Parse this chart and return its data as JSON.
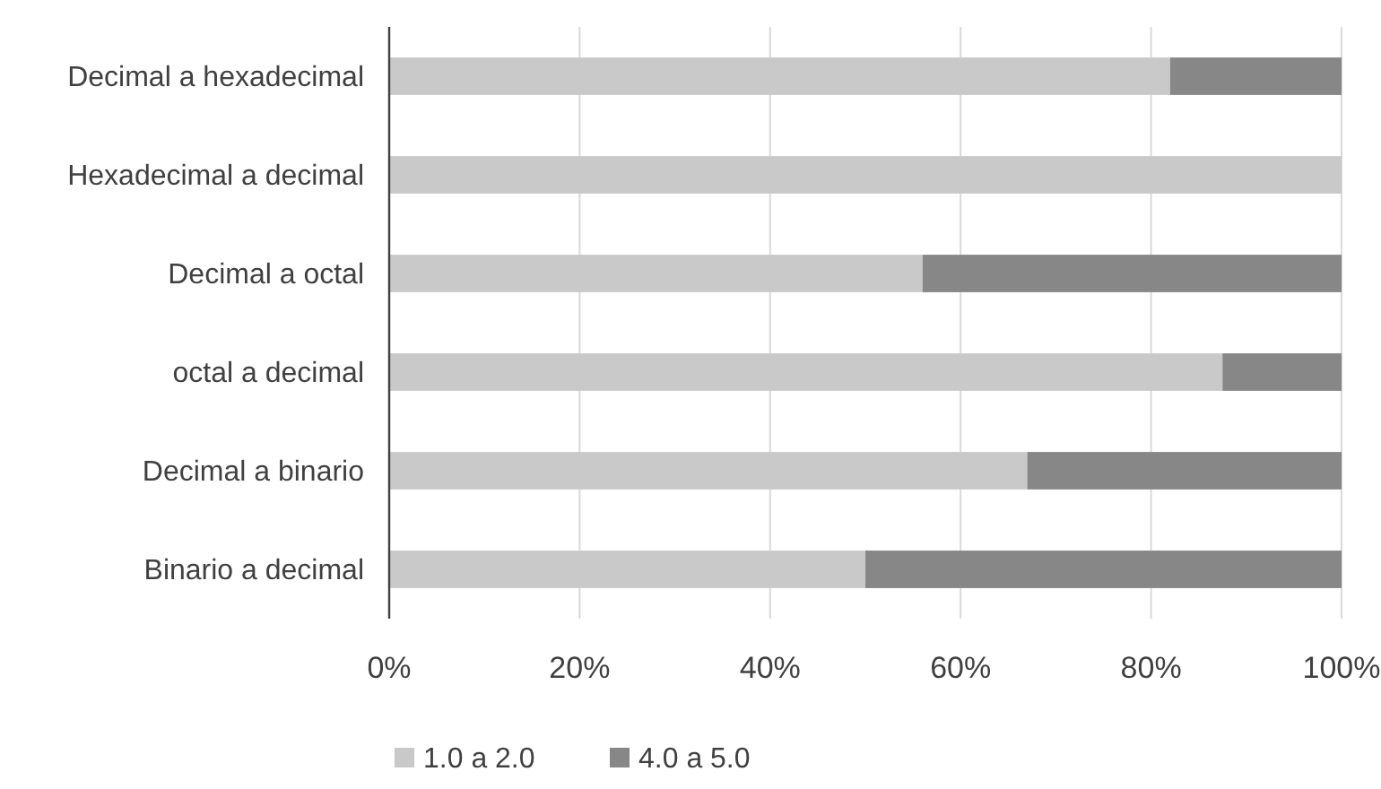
{
  "chart_data": {
    "type": "bar",
    "orientation": "horizontal",
    "stacked": true,
    "categories": [
      "Decimal a hexadecimal",
      "Hexadecimal a decimal",
      "Decimal a octal",
      "octal a decimal",
      "Decimal a binario",
      "Binario a decimal"
    ],
    "series": [
      {
        "name": "1.0 a 2.0",
        "color": "#c9c9c9",
        "values": [
          82,
          100,
          56,
          87.5,
          67,
          50
        ]
      },
      {
        "name": "4.0 a 5.0",
        "color": "#878787",
        "values": [
          18,
          0,
          44,
          12.5,
          33,
          50
        ]
      }
    ],
    "xlim": [
      0,
      100
    ],
    "xticks": [
      {
        "value": 0,
        "label": "0%"
      },
      {
        "value": 20,
        "label": "20%"
      },
      {
        "value": 40,
        "label": "40%"
      },
      {
        "value": 60,
        "label": "60%"
      },
      {
        "value": 80,
        "label": "80%"
      },
      {
        "value": 100,
        "label": "100%"
      }
    ],
    "grid": "x",
    "legend": "bottom"
  }
}
